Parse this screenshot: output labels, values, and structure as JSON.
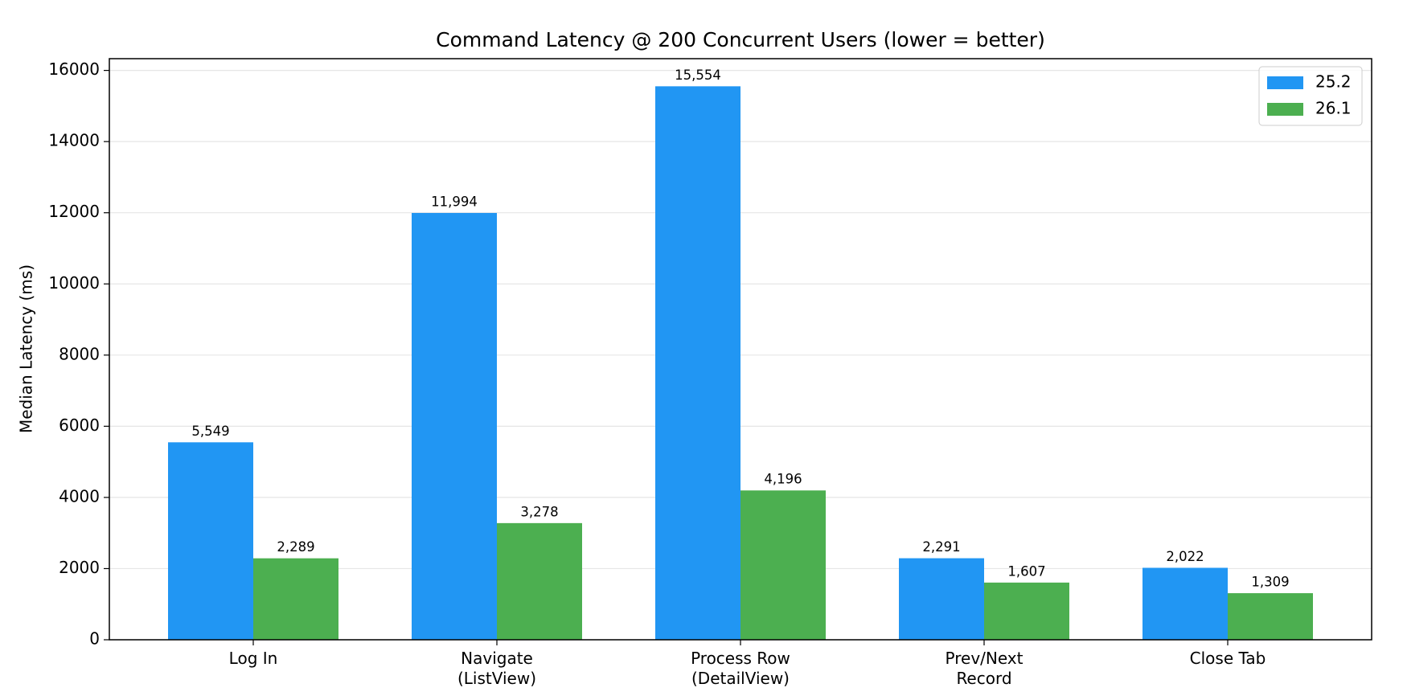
{
  "chart_data": {
    "type": "bar",
    "title": "Command Latency @ 200 Concurrent Users (lower = better)",
    "y_label": "Median Latency (ms)",
    "categories": [
      "Log In",
      "Navigate\n(ListView)",
      "Process Row\n(DetailView)",
      "Prev/Next\nRecord",
      "Close Tab"
    ],
    "series": [
      {
        "name": "25.2",
        "color": "#2196f3",
        "values": [
          5549,
          11994,
          15554,
          2291,
          2022
        ],
        "value_labels": [
          "5,549",
          "11,994",
          "15,554",
          "2,291",
          "2,022"
        ]
      },
      {
        "name": "26.1",
        "color": "#4caf50",
        "values": [
          2289,
          3278,
          4196,
          1607,
          1309
        ],
        "value_labels": [
          "2,289",
          "3,278",
          "4,196",
          "1,607",
          "1,309"
        ]
      }
    ],
    "ylim": [
      0,
      16330
    ],
    "yticks": [
      0,
      2000,
      4000,
      6000,
      8000,
      10000,
      12000,
      14000,
      16000
    ],
    "grid": true,
    "legend": "upper-right"
  }
}
